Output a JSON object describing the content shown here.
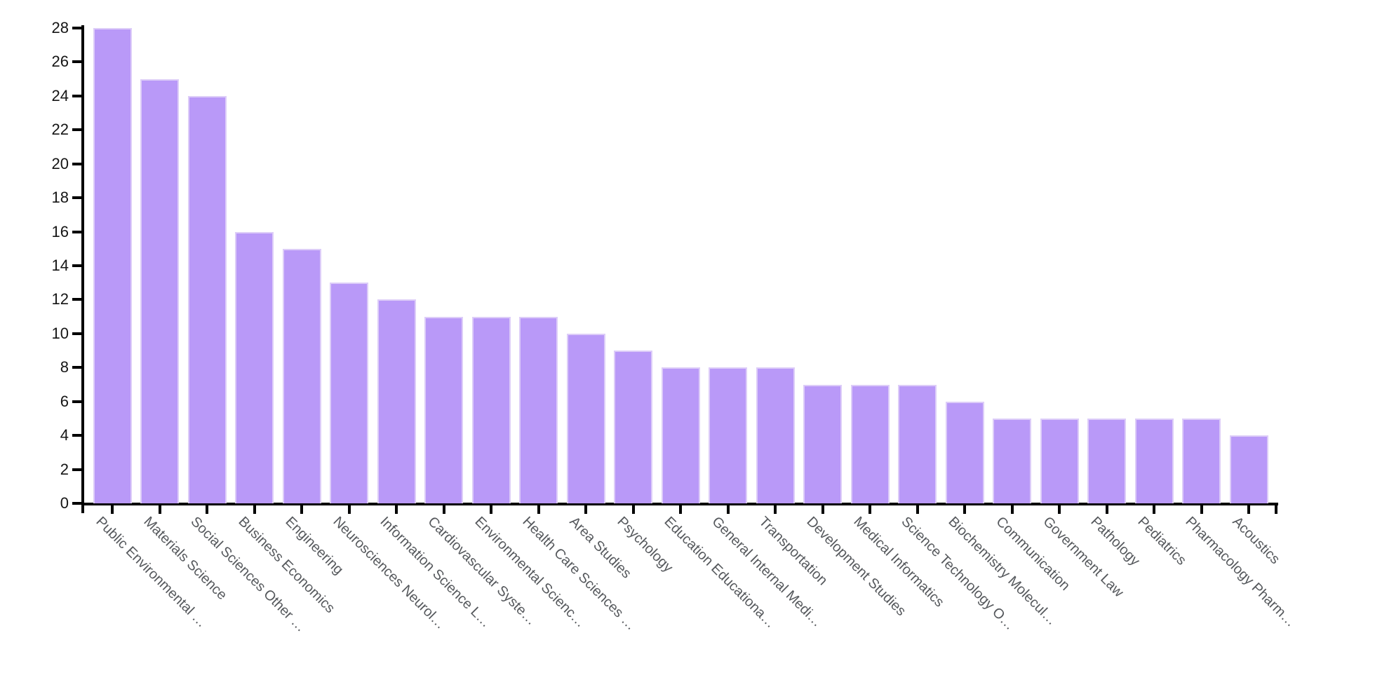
{
  "page": {
    "background": "#ffffff"
  },
  "chart_data": {
    "type": "bar",
    "title": "",
    "xlabel": "",
    "ylabel": "",
    "categories": [
      "Public Environmental …",
      "Materials Science",
      "Social Sciences Other …",
      "Business Economics",
      "Engineering",
      "Neurosciences Neurol…",
      "Information Science L…",
      "Cardiovascular Syste…",
      "Environmental Scienc…",
      "Health Care Sciences …",
      "Area Studies",
      "Psychology",
      "Education Educationa…",
      "General Internal Medi…",
      "Transportation",
      "Development Studies",
      "Medical Informatics",
      "Science Technology O…",
      "Biochemistry Molecul…",
      "Communication",
      "Government Law",
      "Pathology",
      "Pediatrics",
      "Pharmacology Pharm…",
      "Acoustics"
    ],
    "values": [
      28,
      25,
      24,
      16,
      15,
      13,
      12,
      11,
      11,
      11,
      10,
      9,
      8,
      8,
      8,
      7,
      7,
      7,
      6,
      5,
      5,
      5,
      5,
      5,
      4
    ],
    "ylim": [
      0,
      28
    ],
    "yticks": [
      0,
      2,
      4,
      6,
      8,
      10,
      12,
      14,
      16,
      18,
      20,
      22,
      24,
      26,
      28
    ],
    "grid": false,
    "legend": "none",
    "x_label_rotation_deg": 45,
    "bar_color": "#b999f8",
    "bar_edge_color": "#ddcdf8",
    "axis_color": "#000000",
    "ytick_label_color": "#151515",
    "xtick_label_color": "#55585c"
  }
}
